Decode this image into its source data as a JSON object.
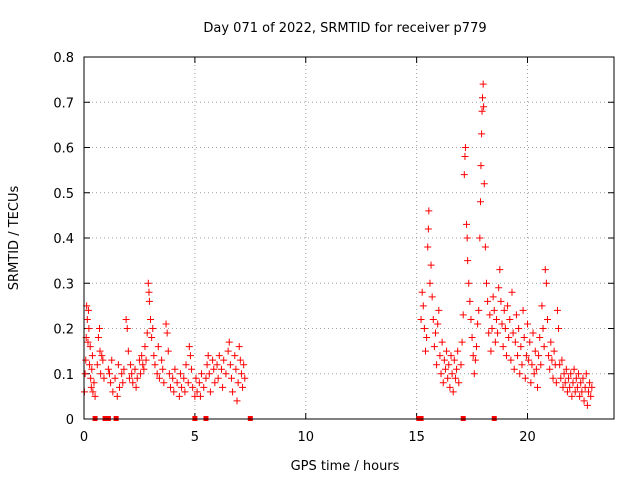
{
  "chart_data": {
    "type": "scatter",
    "title": "Day 071 of 2022, SRMTID for receiver p779",
    "xlabel": "GPS time / hours",
    "ylabel": "SRMTID / TECUs",
    "xlim": [
      0,
      23.9
    ],
    "ylim": [
      0,
      0.8
    ],
    "xticks": [
      0,
      5,
      10,
      15,
      20
    ],
    "xtick_labels": [
      "0",
      "5",
      "10",
      "15",
      "20"
    ],
    "yticks": [
      0,
      0.1,
      0.2,
      0.3,
      0.4,
      0.5,
      0.6,
      0.7,
      0.8
    ],
    "ytick_labels": [
      "0",
      "0.1",
      "0.2",
      "0.3",
      "0.4",
      "0.5",
      "0.6",
      "0.7",
      "0.8"
    ],
    "grid": true,
    "marker": "plus",
    "color": "#ff0000",
    "points": [
      [
        0.02,
        0.06
      ],
      [
        0.05,
        0.1
      ],
      [
        0.08,
        0.13
      ],
      [
        0.1,
        0.18
      ],
      [
        0.12,
        0.25
      ],
      [
        0.15,
        0.22
      ],
      [
        0.18,
        0.17
      ],
      [
        0.2,
        0.24
      ],
      [
        0.22,
        0.2
      ],
      [
        0.25,
        0.12
      ],
      [
        0.28,
        0.16
      ],
      [
        0.3,
        0.09
      ],
      [
        0.33,
        0.07
      ],
      [
        0.35,
        0.11
      ],
      [
        0.38,
        0.14
      ],
      [
        0.4,
        0.06
      ],
      [
        0.45,
        0.08
      ],
      [
        0.5,
        0.05
      ],
      [
        0.6,
        0.12
      ],
      [
        0.65,
        0.18
      ],
      [
        0.7,
        0.2
      ],
      [
        0.72,
        0.15
      ],
      [
        0.75,
        0.1
      ],
      [
        0.8,
        0.14
      ],
      [
        0.85,
        0.13
      ],
      [
        0.9,
        0.09
      ],
      [
        1.1,
        0.11
      ],
      [
        1.15,
        0.1
      ],
      [
        1.2,
        0.08
      ],
      [
        1.25,
        0.13
      ],
      [
        1.3,
        0.06
      ],
      [
        1.4,
        0.09
      ],
      [
        1.5,
        0.05
      ],
      [
        1.55,
        0.12
      ],
      [
        1.6,
        0.07
      ],
      [
        1.7,
        0.1
      ],
      [
        1.75,
        0.08
      ],
      [
        1.8,
        0.11
      ],
      [
        1.9,
        0.22
      ],
      [
        1.95,
        0.2
      ],
      [
        2.0,
        0.15
      ],
      [
        2.05,
        0.09
      ],
      [
        2.1,
        0.12
      ],
      [
        2.15,
        0.1
      ],
      [
        2.2,
        0.08
      ],
      [
        2.3,
        0.11
      ],
      [
        2.35,
        0.07
      ],
      [
        2.4,
        0.09
      ],
      [
        2.5,
        0.13
      ],
      [
        2.55,
        0.1
      ],
      [
        2.6,
        0.14
      ],
      [
        2.65,
        0.12
      ],
      [
        2.7,
        0.11
      ],
      [
        2.75,
        0.16
      ],
      [
        2.8,
        0.13
      ],
      [
        2.85,
        0.19
      ],
      [
        2.9,
        0.3
      ],
      [
        2.93,
        0.28
      ],
      [
        2.95,
        0.26
      ],
      [
        3.0,
        0.22
      ],
      [
        3.05,
        0.18
      ],
      [
        3.1,
        0.2
      ],
      [
        3.15,
        0.14
      ],
      [
        3.2,
        0.12
      ],
      [
        3.3,
        0.1
      ],
      [
        3.35,
        0.16
      ],
      [
        3.4,
        0.09
      ],
      [
        3.5,
        0.13
      ],
      [
        3.55,
        0.11
      ],
      [
        3.6,
        0.08
      ],
      [
        3.7,
        0.21
      ],
      [
        3.75,
        0.19
      ],
      [
        3.8,
        0.15
      ],
      [
        3.85,
        0.1
      ],
      [
        3.9,
        0.07
      ],
      [
        4.0,
        0.09
      ],
      [
        4.05,
        0.06
      ],
      [
        4.1,
        0.11
      ],
      [
        4.2,
        0.08
      ],
      [
        4.3,
        0.05
      ],
      [
        4.35,
        0.1
      ],
      [
        4.4,
        0.07
      ],
      [
        4.5,
        0.09
      ],
      [
        4.55,
        0.06
      ],
      [
        4.6,
        0.12
      ],
      [
        4.7,
        0.08
      ],
      [
        4.75,
        0.16
      ],
      [
        4.8,
        0.14
      ],
      [
        4.85,
        0.11
      ],
      [
        4.9,
        0.07
      ],
      [
        5.0,
        0.05
      ],
      [
        5.05,
        0.09
      ],
      [
        5.1,
        0.06
      ],
      [
        5.2,
        0.08
      ],
      [
        5.25,
        0.05
      ],
      [
        5.3,
        0.1
      ],
      [
        5.4,
        0.07
      ],
      [
        5.5,
        0.09
      ],
      [
        5.55,
        0.12
      ],
      [
        5.6,
        0.14
      ],
      [
        5.65,
        0.1
      ],
      [
        5.7,
        0.06
      ],
      [
        5.8,
        0.13
      ],
      [
        5.85,
        0.11
      ],
      [
        5.9,
        0.08
      ],
      [
        6.0,
        0.12
      ],
      [
        6.05,
        0.09
      ],
      [
        6.1,
        0.14
      ],
      [
        6.2,
        0.11
      ],
      [
        6.25,
        0.07
      ],
      [
        6.3,
        0.13
      ],
      [
        6.4,
        0.1
      ],
      [
        6.5,
        0.15
      ],
      [
        6.55,
        0.17
      ],
      [
        6.6,
        0.12
      ],
      [
        6.65,
        0.09
      ],
      [
        6.7,
        0.06
      ],
      [
        6.8,
        0.14
      ],
      [
        6.85,
        0.11
      ],
      [
        6.9,
        0.04
      ],
      [
        6.95,
        0.08
      ],
      [
        7.0,
        0.16
      ],
      [
        7.05,
        0.13
      ],
      [
        7.1,
        0.1
      ],
      [
        7.15,
        0.07
      ],
      [
        7.2,
        0.12
      ],
      [
        7.25,
        0.09
      ],
      [
        15.2,
        0.22
      ],
      [
        15.25,
        0.28
      ],
      [
        15.3,
        0.25
      ],
      [
        15.35,
        0.2
      ],
      [
        15.4,
        0.15
      ],
      [
        15.45,
        0.18
      ],
      [
        15.5,
        0.38
      ],
      [
        15.53,
        0.42
      ],
      [
        15.55,
        0.46
      ],
      [
        15.6,
        0.3
      ],
      [
        15.65,
        0.34
      ],
      [
        15.7,
        0.27
      ],
      [
        15.75,
        0.22
      ],
      [
        15.8,
        0.16
      ],
      [
        15.85,
        0.19
      ],
      [
        15.9,
        0.12
      ],
      [
        15.95,
        0.21
      ],
      [
        16.0,
        0.24
      ],
      [
        16.05,
        0.14
      ],
      [
        16.1,
        0.1
      ],
      [
        16.15,
        0.17
      ],
      [
        16.2,
        0.08
      ],
      [
        16.25,
        0.13
      ],
      [
        16.3,
        0.11
      ],
      [
        16.35,
        0.15
      ],
      [
        16.4,
        0.09
      ],
      [
        16.45,
        0.12
      ],
      [
        16.5,
        0.07
      ],
      [
        16.55,
        0.14
      ],
      [
        16.6,
        0.1
      ],
      [
        16.65,
        0.06
      ],
      [
        16.7,
        0.13
      ],
      [
        16.75,
        0.09
      ],
      [
        16.8,
        0.11
      ],
      [
        16.85,
        0.15
      ],
      [
        16.9,
        0.08
      ],
      [
        17.0,
        0.12
      ],
      [
        17.05,
        0.17
      ],
      [
        17.1,
        0.23
      ],
      [
        17.15,
        0.54
      ],
      [
        17.18,
        0.58
      ],
      [
        17.2,
        0.6
      ],
      [
        17.25,
        0.43
      ],
      [
        17.28,
        0.4
      ],
      [
        17.3,
        0.35
      ],
      [
        17.35,
        0.3
      ],
      [
        17.4,
        0.26
      ],
      [
        17.45,
        0.22
      ],
      [
        17.5,
        0.18
      ],
      [
        17.55,
        0.14
      ],
      [
        17.6,
        0.1
      ],
      [
        17.65,
        0.13
      ],
      [
        17.7,
        0.16
      ],
      [
        17.75,
        0.21
      ],
      [
        17.8,
        0.24
      ],
      [
        17.85,
        0.4
      ],
      [
        17.88,
        0.48
      ],
      [
        17.9,
        0.56
      ],
      [
        17.93,
        0.63
      ],
      [
        17.95,
        0.68
      ],
      [
        17.97,
        0.71
      ],
      [
        18.0,
        0.74
      ],
      [
        18.02,
        0.69
      ],
      [
        18.05,
        0.52
      ],
      [
        18.1,
        0.38
      ],
      [
        18.15,
        0.3
      ],
      [
        18.2,
        0.26
      ],
      [
        18.25,
        0.19
      ],
      [
        18.3,
        0.23
      ],
      [
        18.35,
        0.15
      ],
      [
        18.4,
        0.2
      ],
      [
        18.45,
        0.27
      ],
      [
        18.5,
        0.24
      ],
      [
        18.55,
        0.17
      ],
      [
        18.6,
        0.22
      ],
      [
        18.65,
        0.19
      ],
      [
        18.7,
        0.29
      ],
      [
        18.75,
        0.33
      ],
      [
        18.8,
        0.26
      ],
      [
        18.85,
        0.21
      ],
      [
        18.9,
        0.16
      ],
      [
        18.95,
        0.24
      ],
      [
        19.0,
        0.2
      ],
      [
        19.05,
        0.14
      ],
      [
        19.1,
        0.25
      ],
      [
        19.15,
        0.18
      ],
      [
        19.2,
        0.22
      ],
      [
        19.25,
        0.13
      ],
      [
        19.3,
        0.28
      ],
      [
        19.35,
        0.19
      ],
      [
        19.4,
        0.11
      ],
      [
        19.45,
        0.17
      ],
      [
        19.5,
        0.23
      ],
      [
        19.55,
        0.14
      ],
      [
        19.6,
        0.2
      ],
      [
        19.65,
        0.1
      ],
      [
        19.7,
        0.16
      ],
      [
        19.75,
        0.12
      ],
      [
        19.8,
        0.24
      ],
      [
        19.85,
        0.18
      ],
      [
        19.9,
        0.09
      ],
      [
        19.95,
        0.14
      ],
      [
        20.0,
        0.21
      ],
      [
        20.05,
        0.13
      ],
      [
        20.1,
        0.17
      ],
      [
        20.15,
        0.08
      ],
      [
        20.2,
        0.12
      ],
      [
        20.25,
        0.19
      ],
      [
        20.3,
        0.1
      ],
      [
        20.35,
        0.15
      ],
      [
        20.4,
        0.11
      ],
      [
        20.45,
        0.07
      ],
      [
        20.5,
        0.14
      ],
      [
        20.55,
        0.18
      ],
      [
        20.6,
        0.12
      ],
      [
        20.65,
        0.25
      ],
      [
        20.7,
        0.2
      ],
      [
        20.75,
        0.16
      ],
      [
        20.8,
        0.33
      ],
      [
        20.85,
        0.3
      ],
      [
        20.9,
        0.22
      ],
      [
        20.95,
        0.14
      ],
      [
        21.0,
        0.11
      ],
      [
        21.05,
        0.17
      ],
      [
        21.1,
        0.13
      ],
      [
        21.15,
        0.09
      ],
      [
        21.2,
        0.15
      ],
      [
        21.25,
        0.12
      ],
      [
        21.3,
        0.08
      ],
      [
        21.35,
        0.24
      ],
      [
        21.4,
        0.2
      ],
      [
        21.45,
        0.12
      ],
      [
        21.5,
        0.09
      ],
      [
        21.55,
        0.13
      ],
      [
        21.6,
        0.07
      ],
      [
        21.65,
        0.1
      ],
      [
        21.7,
        0.08
      ],
      [
        21.75,
        0.11
      ],
      [
        21.8,
        0.06
      ],
      [
        21.85,
        0.09
      ],
      [
        21.9,
        0.07
      ],
      [
        21.95,
        0.1
      ],
      [
        22.0,
        0.05
      ],
      [
        22.05,
        0.08
      ],
      [
        22.1,
        0.11
      ],
      [
        22.15,
        0.06
      ],
      [
        22.2,
        0.09
      ],
      [
        22.25,
        0.07
      ],
      [
        22.3,
        0.1
      ],
      [
        22.35,
        0.05
      ],
      [
        22.4,
        0.08
      ],
      [
        22.45,
        0.06
      ],
      [
        22.5,
        0.09
      ],
      [
        22.55,
        0.04
      ],
      [
        22.6,
        0.07
      ],
      [
        22.65,
        0.1
      ],
      [
        22.7,
        0.03
      ],
      [
        22.75,
        0.06
      ],
      [
        22.8,
        0.08
      ],
      [
        22.85,
        0.05
      ],
      [
        22.9,
        0.07
      ]
    ],
    "zero_markers": [
      0.5,
      0.95,
      1.1,
      1.45,
      5.0,
      5.5,
      7.5,
      15.1,
      15.2,
      17.1,
      18.5
    ]
  }
}
